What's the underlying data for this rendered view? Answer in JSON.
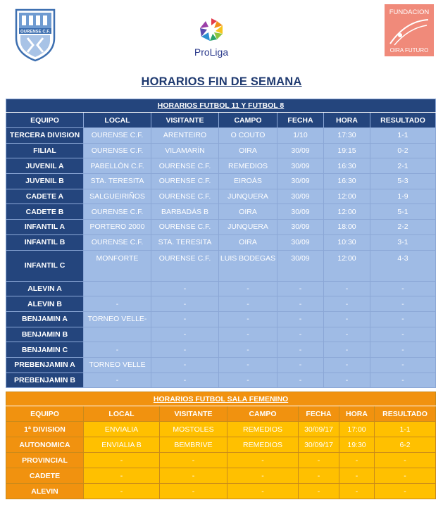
{
  "header": {
    "crest_text": "OURENSE C.F.",
    "proliga_brand": "ProLiga",
    "fundacion_text_top": "FUNDACION",
    "fundacion_text_bottom": "OIRA FUTURO",
    "title": "HORARIOS FIN DE SEMANA"
  },
  "colors": {
    "navy": "#24457d",
    "light_blue": "#9fbbe5",
    "orange": "#f1920f",
    "amber": "#ffc000",
    "salmon": "#f08a7a"
  },
  "futbol": {
    "caption": "HORARIOS FUTBOL 11 Y FUTBOL 8",
    "headers": [
      "EQUIPO",
      "LOCAL",
      "VISITANTE",
      "CAMPO",
      "FECHA",
      "HORA",
      "RESULTADO"
    ],
    "rows": [
      [
        "TERCERA DIVISION",
        "OURENSE C.F.",
        "ARENTEIRO",
        "O COUTO",
        "1/10",
        "17:30",
        "1-1"
      ],
      [
        "FILIAL",
        "OURENSE C.F.",
        "VILAMARÍN",
        "OIRA",
        "30/09",
        "19:15",
        "0-2"
      ],
      [
        "JUVENIL A",
        "PABELLÓN C.F.",
        "OURENSE C.F.",
        "REMEDIOS",
        "30/09",
        "16:30",
        "2-1"
      ],
      [
        "JUVENIL B",
        "STA. TERESITA",
        "OURENSE C.F.",
        "EIROÁS",
        "30/09",
        "16:30",
        "5-3"
      ],
      [
        "CADETE A",
        "SALGUEIRIÑOS",
        "OURENSE C.F.",
        "JUNQUERA",
        "30/09",
        "12:00",
        "1-9"
      ],
      [
        "CADETE B",
        "OURENSE C.F.",
        "BARBADÁS B",
        "OIRA",
        "30/09",
        "12:00",
        "5-1"
      ],
      [
        "INFANTIL A",
        "PORTERO 2000",
        "OURENSE C.F.",
        "JUNQUERA",
        "30/09",
        "18:00",
        "2-2"
      ],
      [
        "INFANTIL B",
        "OURENSE C.F.",
        "STA. TERESITA",
        "OIRA",
        "30/09",
        "10:30",
        "3-1"
      ],
      [
        "INFANTIL C",
        "MONFORTE",
        "OURENSE C.F.",
        "LUIS BODEGAS",
        "30/09",
        "12:00",
        "4-3"
      ],
      [
        "ALEVIN A",
        "",
        "-",
        "-",
        "-",
        "-",
        "-"
      ],
      [
        "ALEVIN B",
        "-",
        "-",
        "-",
        "-",
        "-",
        "-"
      ],
      [
        "BENJAMIN A",
        "TORNEO VELLE-",
        "-",
        "-",
        "-",
        "-",
        "-"
      ],
      [
        "BENJAMIN B",
        "",
        "-",
        "-",
        "-",
        "-",
        "-"
      ],
      [
        "BENJAMIN C",
        "-",
        "-",
        "-",
        "-",
        "-",
        "-"
      ],
      [
        "PREBENJAMIN A",
        "TORNEO VELLE",
        "-",
        "-",
        "-",
        "-",
        "-"
      ],
      [
        "PREBENJAMIN B",
        "-",
        "-",
        "-",
        "-",
        "-",
        "-"
      ]
    ]
  },
  "sala": {
    "caption": "HORARIOS FUTBOL SALA FEMENINO",
    "headers": [
      "EQUIPO",
      "LOCAL",
      "VISITANTE",
      "CAMPO",
      "FECHA",
      "HORA",
      "RESULTADO"
    ],
    "rows": [
      [
        "1ª DIVISION",
        "ENVIALIA",
        "MOSTOLES",
        "REMEDIOS",
        "30/09/17",
        "17:00",
        "1-1"
      ],
      [
        "AUTONOMICA",
        "ENVIALIA B",
        "BEMBRIVE",
        "REMEDIOS",
        "30/09/17",
        "19:30",
        "6-2"
      ],
      [
        "PROVINCIAL",
        "-",
        "-",
        "-",
        "-",
        "-",
        "-"
      ],
      [
        "CADETE",
        "-",
        "-",
        "-",
        "-",
        "-",
        "-"
      ],
      [
        "ALEVIN",
        "-",
        "-",
        "-",
        "-",
        "-",
        "-"
      ]
    ]
  }
}
